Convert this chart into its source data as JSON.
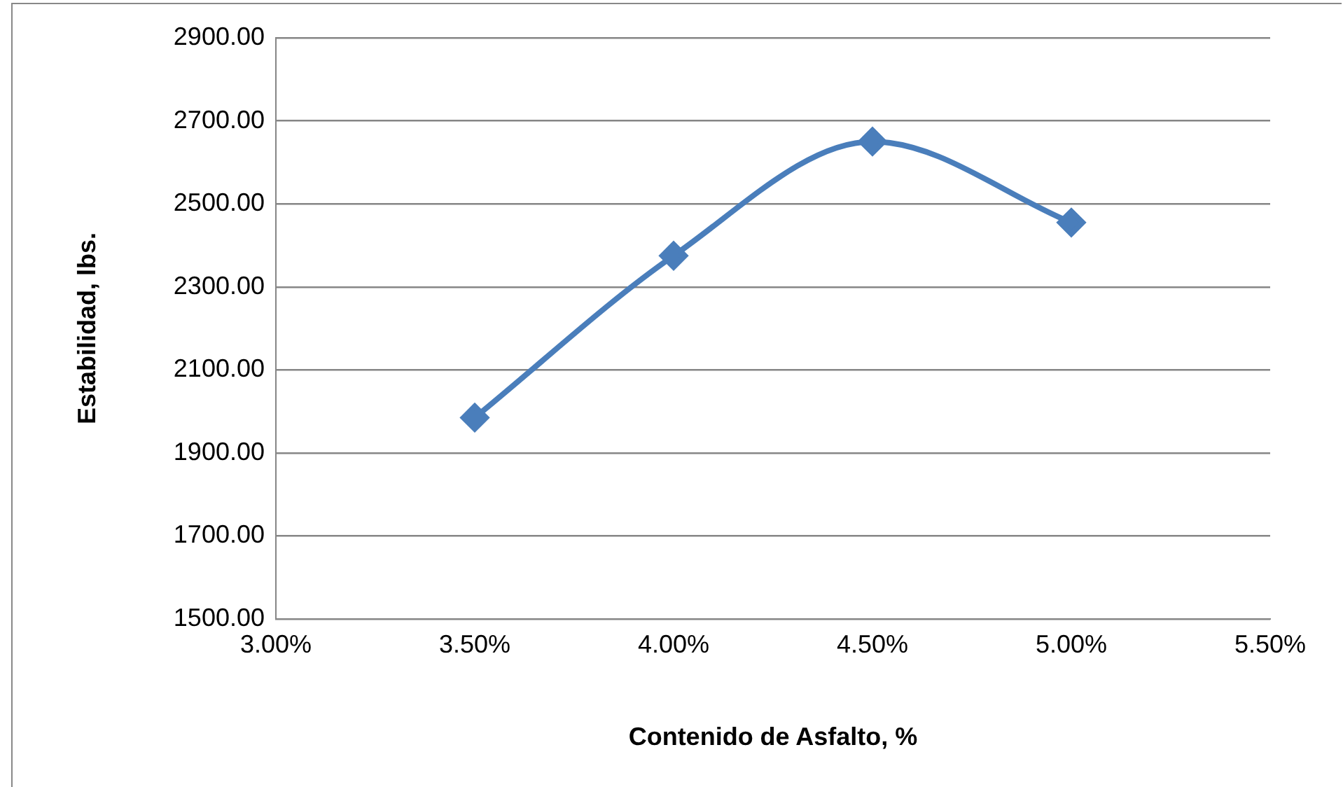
{
  "chart_data": {
    "type": "line",
    "xlabel": "Contenido de Asfalto, %",
    "ylabel": "Estabilidad, lbs.",
    "x": [
      3.5,
      4.0,
      4.5,
      5.0
    ],
    "series": [
      {
        "color": "#4a7ebb",
        "values": [
          1985,
          2375,
          2650,
          2455
        ]
      }
    ],
    "xlim": [
      3,
      5.5
    ],
    "xticks": [
      {
        "value": 3,
        "label": "3.00%"
      },
      {
        "value": 3.5,
        "label": "3.50%"
      },
      {
        "value": 4,
        "label": "4.00%"
      },
      {
        "value": 4.5,
        "label": "4.50%"
      },
      {
        "value": 5,
        "label": "5.00%"
      },
      {
        "value": 5.5,
        "label": "5.50%"
      }
    ],
    "ylim": [
      1500,
      2900
    ],
    "yticks": [
      {
        "value": 1500,
        "label": "1500.00"
      },
      {
        "value": 1700,
        "label": "1700.00"
      },
      {
        "value": 1900,
        "label": "1900.00"
      },
      {
        "value": 2100,
        "label": "2100.00"
      },
      {
        "value": 2300,
        "label": "2300.00"
      },
      {
        "value": 2500,
        "label": "2500.00"
      },
      {
        "value": 2700,
        "label": "2700.00"
      },
      {
        "value": 2900,
        "label": "2900.00"
      }
    ],
    "grid": "y",
    "legend": false,
    "marker": "diamond",
    "line_style": "solid"
  }
}
